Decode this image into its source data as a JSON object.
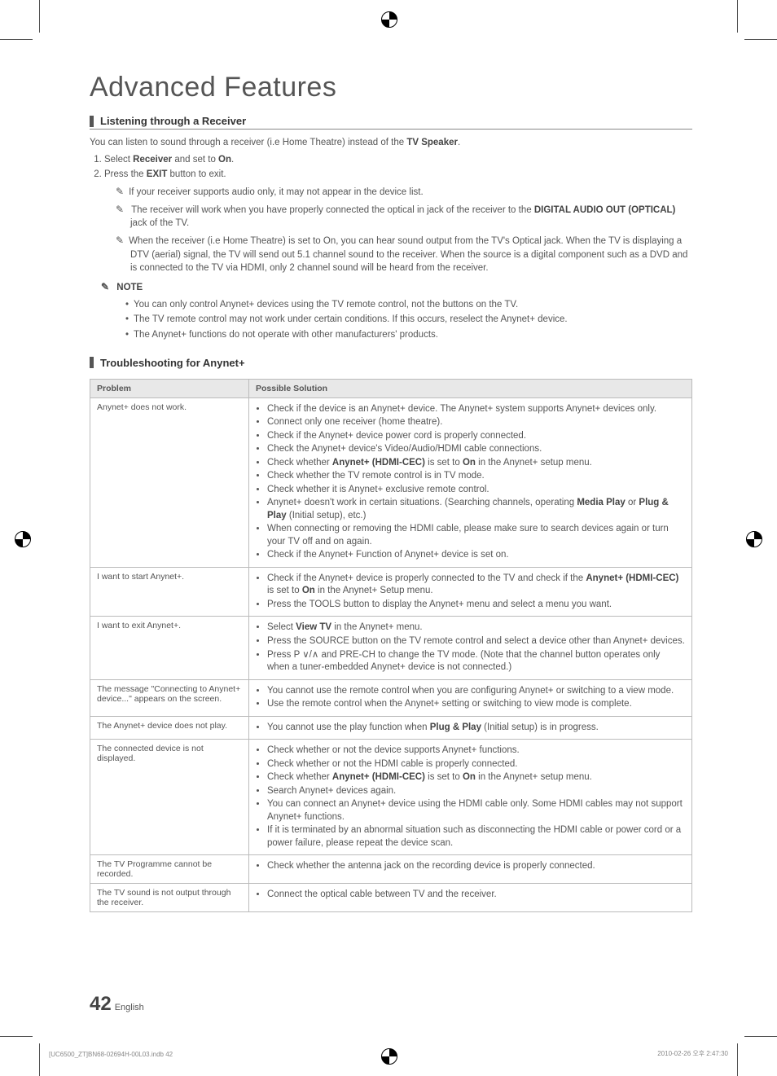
{
  "page_title": "Advanced Features",
  "section1": {
    "heading": "Listening through a Receiver",
    "intro_pre": "You can listen to sound through a receiver (i.e Home Theatre) instead of the ",
    "intro_bold": "TV Speaker",
    "intro_post": ".",
    "step1_pre": "Select ",
    "step1_b1": "Receiver",
    "step1_mid": " and set to ",
    "step1_b2": "On",
    "step1_post": ".",
    "step2_pre": "Press the ",
    "step2_b": "EXIT",
    "step2_post": " button to exit.",
    "note_a": "If your receiver supports audio only, it may not appear in the device list.",
    "note_b_pre": "The receiver will work when you have properly connected the optical in jack of the receiver to the ",
    "note_b_b": "DIGITAL AUDIO OUT (OPTICAL)",
    "note_b_post": " jack of the TV.",
    "note_c": "When the receiver (i.e Home Theatre) is set to On, you can hear sound output from the TV's Optical jack. When the TV is displaying a DTV (aerial) signal, the TV will send out 5.1 channel sound to the receiver. When the source is a digital component such as a DVD and is connected to the TV via HDMI, only 2 channel sound will be heard from the receiver.",
    "note_label": "NOTE",
    "bullet1": "You can only control Anynet+ devices using the TV remote control, not the buttons on the TV.",
    "bullet2": "The TV remote control may not work under certain conditions. If this occurs, reselect the Anynet+ device.",
    "bullet3": "The Anynet+ functions do not operate with other manufacturers' products."
  },
  "section2": {
    "heading": "Troubleshooting for Anynet+",
    "col1": "Problem",
    "col2": "Possible Solution",
    "rows": [
      {
        "problem": "Anynet+ does not work.",
        "items": [
          "Check if the device is an Anynet+ device. The Anynet+ system supports Anynet+ devices only.",
          "Connect only one receiver (home theatre).",
          "Check if the Anynet+ device power cord is properly connected.",
          "Check the Anynet+ device's Video/Audio/HDMI cable connections.",
          "Check whether <b>Anynet+ (HDMI-CEC)</b> is set to <b>On</b> in the Anynet+ setup menu.",
          "Check whether the TV remote control is in TV mode.",
          "Check whether it is Anynet+ exclusive remote control.",
          "Anynet+ doesn't work in certain situations. (Searching channels, operating <b>Media Play</b> or <b>Plug & Play</b> (Initial setup), etc.)",
          "When connecting or removing the HDMI cable, please make sure to search devices again or turn your TV off and on again.",
          "Check if the Anynet+ Function of Anynet+ device is set on."
        ]
      },
      {
        "problem": "I want to start Anynet+.",
        "items": [
          "Check if the Anynet+ device is properly connected to the TV and check if the <b>Anynet+ (HDMI-CEC)</b> is set to <b>On</b> in the Anynet+ Setup menu.",
          "Press the TOOLS button to display the Anynet+ menu and select a menu you want."
        ]
      },
      {
        "problem": "I want to exit Anynet+.",
        "items": [
          "Select <b>View TV</b> in the Anynet+ menu.",
          "Press the SOURCE button on the TV remote control and select a device other than Anynet+ devices.",
          "Press P ∨/∧ and PRE-CH to change the TV mode. (Note that the channel button operates only when a tuner-embedded Anynet+ device is not connected.)"
        ]
      },
      {
        "problem": "The message \"Connecting to Anynet+ device...\" appears on the screen.",
        "items": [
          "You cannot use the remote control when you are configuring Anynet+ or switching to a view mode.",
          "Use the remote control when the Anynet+ setting or switching to view mode is complete."
        ]
      },
      {
        "problem": "The Anynet+ device does not play.",
        "items": [
          "You cannot use the play function when <b>Plug & Play</b> (Initial setup) is in progress."
        ]
      },
      {
        "problem": "The connected device is not displayed.",
        "items": [
          "Check whether or not the device supports Anynet+ functions.",
          "Check whether or not the HDMI cable is properly connected.",
          "Check whether <b>Anynet+ (HDMI-CEC)</b> is set to <b>On</b> in the Anynet+ setup menu.",
          "Search Anynet+ devices again.",
          "You can connect an Anynet+ device using the HDMI cable only. Some HDMI cables may not support Anynet+ functions.",
          "If it is terminated by an abnormal situation such as disconnecting the HDMI cable or power cord or a power failure, please repeat the device scan."
        ]
      },
      {
        "problem": "The TV Programme cannot be recorded.",
        "items": [
          "Check whether the antenna jack on the recording device is properly connected."
        ]
      },
      {
        "problem": "The TV sound is not output through the receiver.",
        "items": [
          "Connect the optical cable between TV and the receiver."
        ]
      }
    ]
  },
  "footer": {
    "page_number": "42",
    "page_lang": "English",
    "left": "[UC6500_ZT]BN68-02694H-00L03.indb   42",
    "right": "2010-02-26   오후 2:47:30"
  }
}
